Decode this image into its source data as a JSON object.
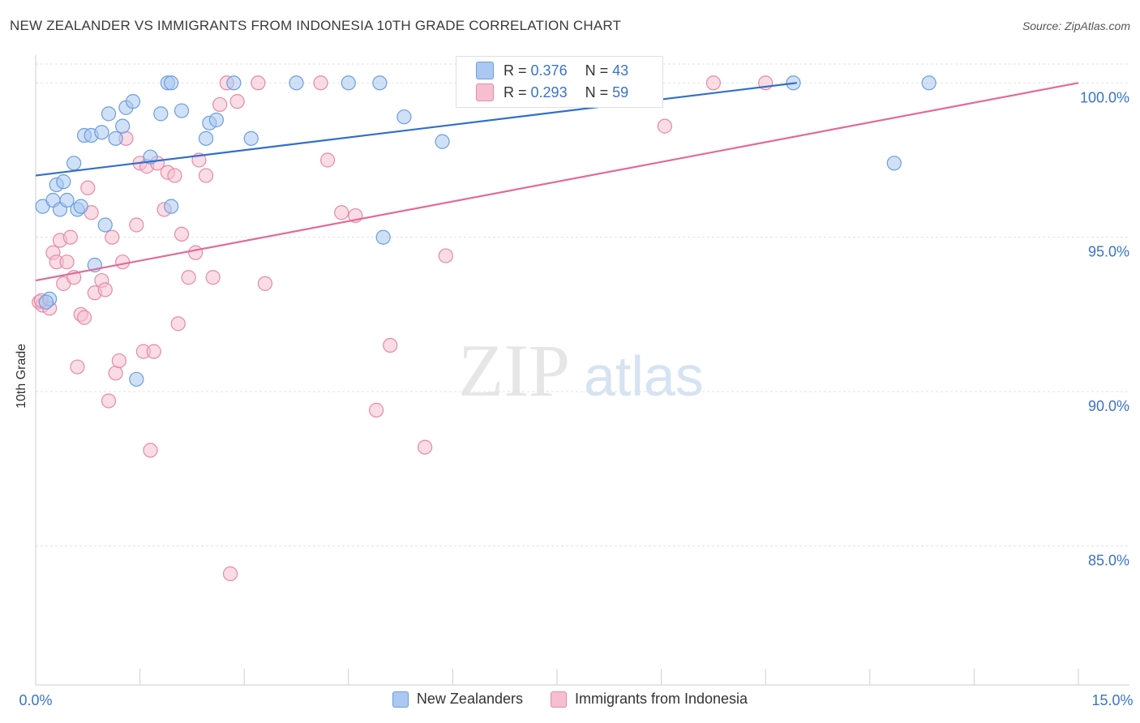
{
  "title": "NEW ZEALANDER VS IMMIGRANTS FROM INDONESIA 10TH GRADE CORRELATION CHART",
  "source": "Source: ZipAtlas.com",
  "watermark": {
    "zip": "ZIP",
    "atlas": "atlas"
  },
  "legend_inset": [
    {
      "r_label": "R = ",
      "r_value": "0.376",
      "n_label": "N = ",
      "n_value": "43"
    },
    {
      "r_label": "R = ",
      "r_value": "0.293",
      "n_label": "N = ",
      "n_value": "59"
    }
  ],
  "chart_data": {
    "type": "scatter",
    "title": "NEW ZEALANDER VS IMMIGRANTS FROM INDONESIA 10TH GRADE CORRELATION CHART",
    "xlabel": "",
    "ylabel": "10th Grade",
    "xlim": [
      0,
      15
    ],
    "ylim": [
      80.5,
      100.9
    ],
    "x_tick_labels": [
      "0.0%",
      "15.0%"
    ],
    "y_ticks": [
      85,
      90,
      95,
      100
    ],
    "y_tick_labels": [
      "85.0%",
      "90.0%",
      "95.0%",
      "100.0%"
    ],
    "grid": true,
    "legend_placement": "bottom",
    "colors": {
      "blue_fill": "#aac8f0",
      "blue_stroke": "#6c9ee0",
      "blue_line": "#3070c8",
      "pink_fill": "#f6bfd0",
      "pink_stroke": "#e58aa8",
      "pink_line": "#e26b95",
      "tick_label": "#3a73c8"
    },
    "series": [
      {
        "name": "New Zealanders",
        "trend": {
          "x": [
            0,
            10.95
          ],
          "y": [
            97.0,
            100.0
          ]
        },
        "points": [
          [
            0.1,
            96.0
          ],
          [
            0.25,
            96.2
          ],
          [
            0.3,
            96.7
          ],
          [
            0.35,
            95.9
          ],
          [
            0.4,
            96.8
          ],
          [
            0.45,
            96.2
          ],
          [
            0.55,
            97.4
          ],
          [
            0.6,
            95.9
          ],
          [
            0.65,
            96.0
          ],
          [
            0.7,
            98.3
          ],
          [
            0.8,
            98.3
          ],
          [
            0.85,
            94.1
          ],
          [
            0.95,
            98.4
          ],
          [
            1.0,
            95.4
          ],
          [
            1.05,
            99.0
          ],
          [
            1.15,
            98.2
          ],
          [
            1.25,
            98.6
          ],
          [
            1.3,
            99.2
          ],
          [
            1.4,
            99.4
          ],
          [
            1.45,
            90.4
          ],
          [
            1.65,
            97.6
          ],
          [
            1.8,
            99.0
          ],
          [
            1.9,
            100.0
          ],
          [
            1.95,
            96.0
          ],
          [
            1.95,
            100.0
          ],
          [
            2.1,
            99.1
          ],
          [
            2.45,
            98.2
          ],
          [
            2.5,
            98.7
          ],
          [
            2.6,
            98.8
          ],
          [
            2.85,
            100.0
          ],
          [
            3.1,
            98.2
          ],
          [
            3.75,
            100.0
          ],
          [
            4.5,
            100.0
          ],
          [
            4.95,
            100.0
          ],
          [
            5.0,
            95.0
          ],
          [
            5.3,
            98.9
          ],
          [
            5.85,
            98.1
          ],
          [
            7.45,
            100.0
          ],
          [
            12.35,
            97.4
          ],
          [
            12.85,
            100.0
          ],
          [
            0.2,
            93.0
          ],
          [
            0.15,
            92.9
          ],
          [
            10.9,
            100.0
          ]
        ]
      },
      {
        "name": "Immigrants from Indonesia",
        "trend": {
          "x": [
            0,
            15
          ],
          "y": [
            93.6,
            100.0
          ]
        },
        "points": [
          [
            0.05,
            92.9
          ],
          [
            0.1,
            92.8
          ],
          [
            0.2,
            92.7
          ],
          [
            0.25,
            94.5
          ],
          [
            0.3,
            94.2
          ],
          [
            0.35,
            94.9
          ],
          [
            0.4,
            93.5
          ],
          [
            0.45,
            94.2
          ],
          [
            0.5,
            95.0
          ],
          [
            0.55,
            93.7
          ],
          [
            0.6,
            90.8
          ],
          [
            0.65,
            92.5
          ],
          [
            0.7,
            92.4
          ],
          [
            0.75,
            96.6
          ],
          [
            0.8,
            95.8
          ],
          [
            0.85,
            93.2
          ],
          [
            0.95,
            93.6
          ],
          [
            1.0,
            93.3
          ],
          [
            1.05,
            89.7
          ],
          [
            1.1,
            95.0
          ],
          [
            1.15,
            90.6
          ],
          [
            1.2,
            91.0
          ],
          [
            1.25,
            94.2
          ],
          [
            1.3,
            98.2
          ],
          [
            1.45,
            95.4
          ],
          [
            1.5,
            97.4
          ],
          [
            1.55,
            91.3
          ],
          [
            1.6,
            97.3
          ],
          [
            1.65,
            88.1
          ],
          [
            1.7,
            91.3
          ],
          [
            1.75,
            97.4
          ],
          [
            1.85,
            95.9
          ],
          [
            1.9,
            97.1
          ],
          [
            2.0,
            97.0
          ],
          [
            2.05,
            92.2
          ],
          [
            2.1,
            95.1
          ],
          [
            2.2,
            93.7
          ],
          [
            2.3,
            94.5
          ],
          [
            2.35,
            97.5
          ],
          [
            2.45,
            97.0
          ],
          [
            2.55,
            93.7
          ],
          [
            2.65,
            99.3
          ],
          [
            2.75,
            100.0
          ],
          [
            2.8,
            84.1
          ],
          [
            2.9,
            99.4
          ],
          [
            3.2,
            100.0
          ],
          [
            3.3,
            93.5
          ],
          [
            4.1,
            100.0
          ],
          [
            4.2,
            97.5
          ],
          [
            4.4,
            95.8
          ],
          [
            4.6,
            95.7
          ],
          [
            4.9,
            89.4
          ],
          [
            5.1,
            91.5
          ],
          [
            5.6,
            88.2
          ],
          [
            5.9,
            94.4
          ],
          [
            9.05,
            98.6
          ],
          [
            9.75,
            100.0
          ],
          [
            10.5,
            100.0
          ],
          [
            0.08,
            92.95
          ]
        ]
      }
    ]
  },
  "bottom_legend": [
    "New Zealanders",
    "Immigrants from Indonesia"
  ]
}
